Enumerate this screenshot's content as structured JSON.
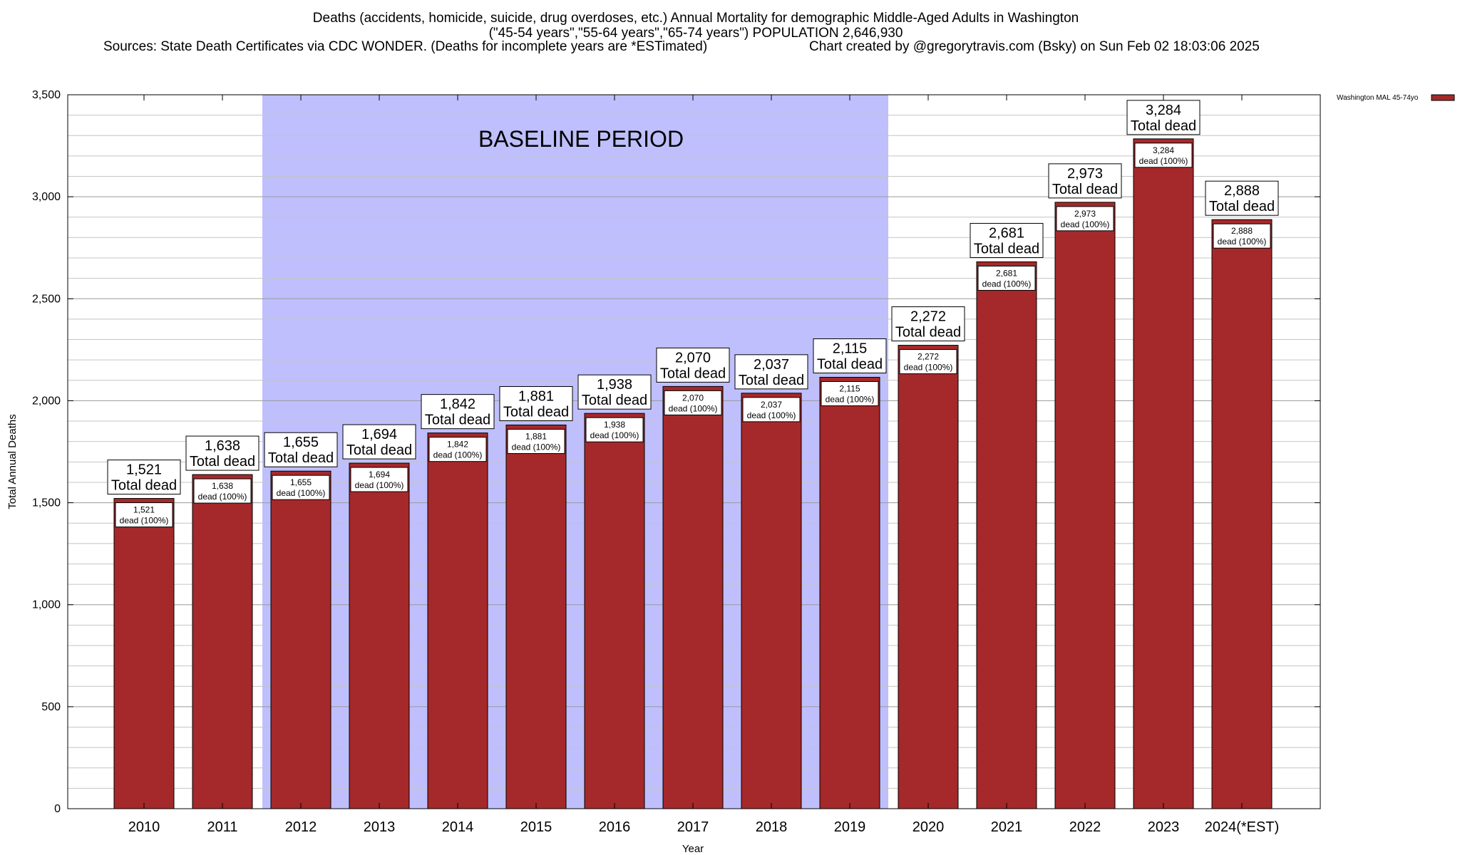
{
  "chart_data": {
    "type": "bar",
    "title": "Deaths (accidents, homicide, suicide, drug overdoses, etc.) Annual Mortality for demographic Middle-Aged Adults in Washington",
    "subtitle": "(\"45-54 years\",\"55-64 years\",\"65-74 years\") POPULATION 2,646,930",
    "sources": "Sources: State Death Certificates via CDC WONDER. (Deaths for incomplete years are *ESTimated)",
    "credit": "Chart created by @gregorytravis.com (Bsky) on Sun Feb 02 18:03:06 2025",
    "xlabel": "Year",
    "ylabel": "Total Annual Deaths",
    "ylim": [
      0,
      3500
    ],
    "yticks": [
      0,
      500,
      1000,
      1500,
      2000,
      2500,
      3000,
      3500
    ],
    "ytick_labels": [
      "0",
      "500",
      "1,000",
      "1,500",
      "2,000",
      "2,500",
      "3,000",
      "3,500"
    ],
    "grid": true,
    "categories": [
      "2010",
      "2011",
      "2012",
      "2013",
      "2014",
      "2015",
      "2016",
      "2017",
      "2018",
      "2019",
      "2020",
      "2021",
      "2022",
      "2023",
      "2024(*EST)"
    ],
    "series": [
      {
        "name": "Washington MAL 45-74yo",
        "color": "#a5292a",
        "values": [
          1521,
          1638,
          1655,
          1694,
          1842,
          1881,
          1938,
          2070,
          2037,
          2115,
          2272,
          2681,
          2973,
          3284,
          2888
        ]
      }
    ],
    "value_labels": [
      "1,521",
      "1,638",
      "1,655",
      "1,694",
      "1,842",
      "1,881",
      "1,938",
      "2,070",
      "2,037",
      "2,115",
      "2,272",
      "2,681",
      "2,973",
      "3,284",
      "2,888"
    ],
    "total_label_suffix": "Total dead",
    "segment_label_suffix": "dead (100%)",
    "baseline_period": {
      "label": "BASELINE PERIOD",
      "start": "2012",
      "end": "2019",
      "color": "#bfbffd"
    },
    "legend_placement": "top-right"
  }
}
